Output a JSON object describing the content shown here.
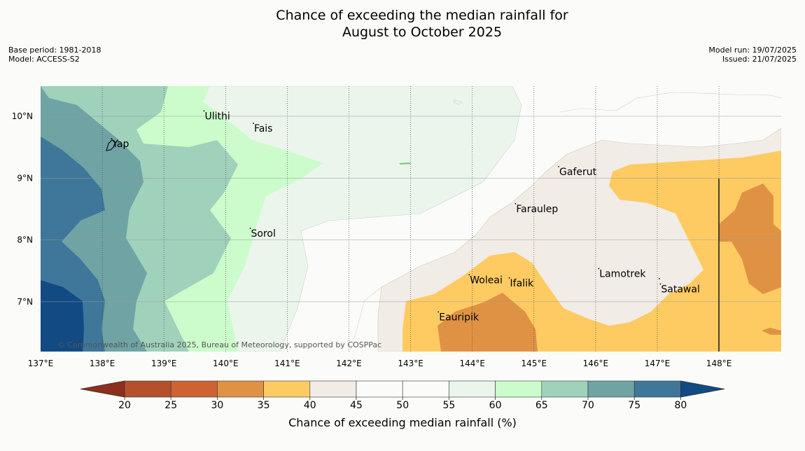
{
  "title": {
    "line1": "Chance of exceeding the median rainfall for",
    "line2": "August to October 2025"
  },
  "meta_left": {
    "base_period": "Base period: 1981-2018",
    "model": "Model: ACCESS-S2"
  },
  "meta_right": {
    "model_run": "Model run: 19/07/2025",
    "issued": "Issued: 21/07/2025"
  },
  "copyright": "© Commonwealth of Australia 2025, Bureau of Meteorology, supported by COSPPac",
  "map": {
    "lon_range": [
      137,
      149
    ],
    "lat_range": [
      6.2,
      10.5
    ],
    "x_ticks": [
      "137°E",
      "138°E",
      "139°E",
      "140°E",
      "141°E",
      "142°E",
      "143°E",
      "144°E",
      "145°E",
      "146°E",
      "147°E",
      "148°E"
    ],
    "y_ticks": [
      "10°N",
      "9°N",
      "8°N",
      "7°N"
    ],
    "places": [
      {
        "name": "Ulithi",
        "lon": 139.65,
        "lat": 9.95
      },
      {
        "name": "Fais",
        "lon": 140.45,
        "lat": 9.75
      },
      {
        "name": "Yap",
        "lon": 138.15,
        "lat": 9.5
      },
      {
        "name": "Gaferut",
        "lon": 145.4,
        "lat": 9.05
      },
      {
        "name": "Faraulep",
        "lon": 144.7,
        "lat": 8.45
      },
      {
        "name": "Sorol",
        "lon": 140.4,
        "lat": 8.05
      },
      {
        "name": "Lamotrek",
        "lon": 146.05,
        "lat": 7.4
      },
      {
        "name": "Woleai",
        "lon": 143.95,
        "lat": 7.3
      },
      {
        "name": "Ifalik",
        "lon": 144.6,
        "lat": 7.25
      },
      {
        "name": "Satawal",
        "lon": 147.05,
        "lat": 7.15
      },
      {
        "name": "Eauripik",
        "lon": 143.45,
        "lat": 6.7
      }
    ]
  },
  "colorbar": {
    "label": "Chance of exceeding median rainfall (%)",
    "ticks": [
      "20",
      "25",
      "30",
      "35",
      "40",
      "45",
      "50",
      "55",
      "60",
      "65",
      "70",
      "75",
      "80"
    ],
    "colors": [
      "#8e2e1c",
      "#b5502c",
      "#cf6233",
      "#e09244",
      "#fecb62",
      "#f2ece7",
      "#fbfcfa",
      "#fbfcfa",
      "#ebf5ec",
      "#ccfccb",
      "#9fd1bb",
      "#6fa3a4",
      "#3e7799",
      "#124a84"
    ]
  }
}
